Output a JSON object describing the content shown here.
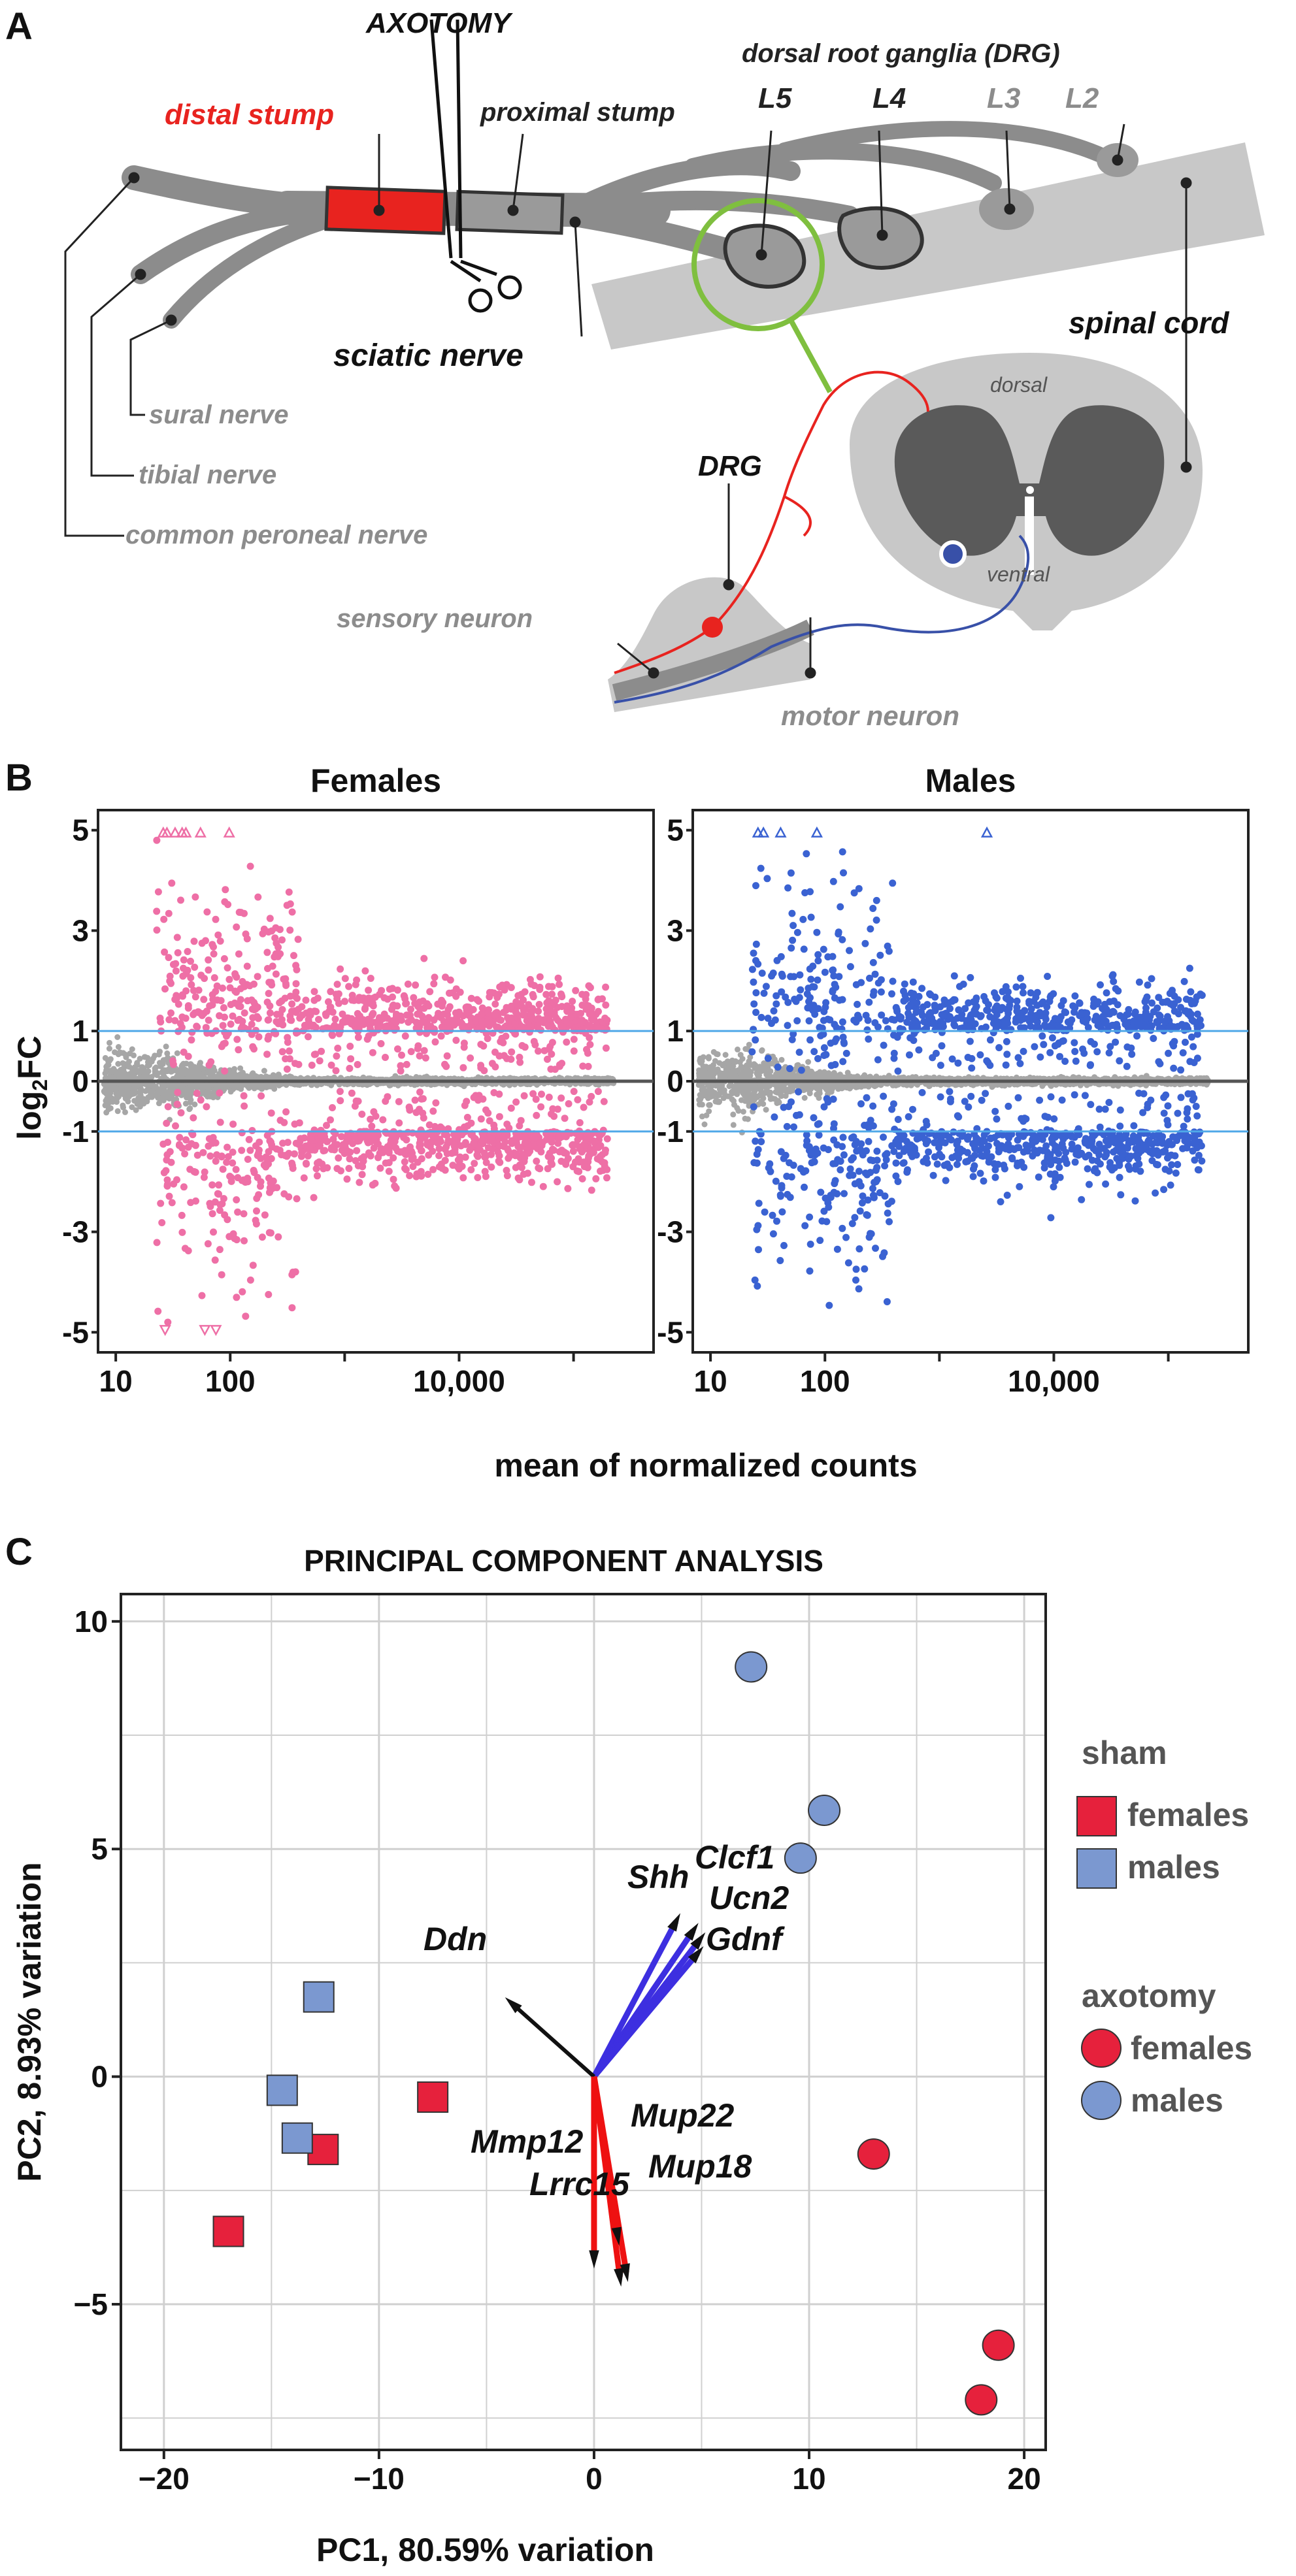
{
  "panel_a": {
    "letter": "A",
    "labels": {
      "axotomy": "AXOTOMY",
      "distal_stump": "distal stump",
      "proximal_stump": "proximal stump",
      "drg_title": "dorsal root ganglia (DRG)",
      "l5": "L5",
      "l4": "L4",
      "l3": "L3",
      "l2": "L2",
      "sciatic_nerve": "sciatic nerve",
      "spinal_cord": "spinal cord",
      "dorsal": "dorsal",
      "ventral": "ventral",
      "sural_nerve": "sural nerve",
      "tibial_nerve": "tibial nerve",
      "common_peroneal_nerve": "common peroneal nerve",
      "drg": "DRG",
      "sensory_neuron": "sensory neuron",
      "motor_neuron": "motor neuron"
    },
    "colors": {
      "nerve": "#8c8c8c",
      "distal": "#e8231f",
      "sensory": "#e8231f",
      "motor": "#3850a8",
      "lens": "#7fbf3f"
    }
  },
  "panel_b": {
    "letter": "B",
    "xlabel": "mean of normalized counts",
    "ylabel_main": "log",
    "ylabel_sub": "2",
    "ylabel_tail": "FC"
  },
  "panel_c": {
    "letter": "C"
  },
  "chart_data": [
    {
      "type": "scatter",
      "subtype": "MA-plot",
      "title": "Females",
      "color": "#ee6fa6",
      "nonsig_color": "#a6a6a6",
      "xscale": "log10",
      "xlim": [
        7,
        500000
      ],
      "ylim": [
        -5.4,
        5.4
      ],
      "x_ticks": [
        10,
        100,
        10000
      ],
      "x_tick_labels": [
        "10",
        "100",
        "10,000"
      ],
      "y_ticks": [
        5,
        3,
        1,
        0,
        -1,
        -3,
        -5
      ],
      "y_tick_labels": [
        "5",
        "3",
        "1",
        "0",
        "-1",
        "-3",
        "-5"
      ],
      "threshold_lines": [
        1,
        -1
      ],
      "threshold_color": "#4fa8e8",
      "outliers_top_x": [
        26,
        28,
        33,
        38,
        41,
        55,
        98
      ],
      "outliers_bottom_x": [
        27,
        60,
        75
      ]
    },
    {
      "type": "scatter",
      "subtype": "MA-plot",
      "title": "Males",
      "color": "#3a62d2",
      "nonsig_color": "#a6a6a6",
      "xscale": "log10",
      "xlim": [
        7,
        500000
      ],
      "ylim": [
        -5.4,
        5.4
      ],
      "x_ticks": [
        10,
        100,
        10000
      ],
      "x_tick_labels": [
        "10",
        "100",
        "10,000"
      ],
      "y_ticks": [
        5,
        3,
        1,
        0,
        -1,
        -3,
        -5
      ],
      "y_tick_labels": [
        "5",
        "3",
        "1",
        "0",
        "-1",
        "-3",
        "-5"
      ],
      "threshold_lines": [
        1,
        -1
      ],
      "threshold_color": "#4fa8e8",
      "outliers_top_x": [
        26,
        29,
        41,
        85,
        2600
      ]
    },
    {
      "type": "scatter",
      "subtype": "PCA biplot",
      "title": "PRINCIPAL COMPONENT ANALYSIS",
      "xlabel": "PC1, 80.59% variation",
      "ylabel": "PC2, 8.93% variation",
      "xlim": [
        -22,
        21
      ],
      "ylim": [
        -8.2,
        10.6
      ],
      "x_ticks": [
        -20,
        -10,
        0,
        10,
        20
      ],
      "x_tick_labels": [
        "−20",
        "−10",
        "0",
        "10",
        "20"
      ],
      "y_ticks": [
        10,
        5,
        0,
        -5
      ],
      "y_tick_labels": [
        "10",
        "5",
        "0",
        "−5"
      ],
      "groups": [
        {
          "name": "sham females",
          "marker": "square",
          "color": "#e6213c",
          "points": [
            [
              -17.0,
              -3.4
            ],
            [
              -12.6,
              -1.6
            ],
            [
              -7.5,
              -0.45
            ]
          ]
        },
        {
          "name": "sham males",
          "marker": "square",
          "color": "#7b98d0",
          "points": [
            [
              -12.8,
              1.75
            ],
            [
              -14.5,
              -0.3
            ],
            [
              -13.8,
              -1.35
            ]
          ]
        },
        {
          "name": "axotomy females",
          "marker": "circle",
          "color": "#e6213c",
          "points": [
            [
              13.0,
              -1.7
            ],
            [
              18.8,
              -5.9
            ],
            [
              18.0,
              -7.1
            ]
          ]
        },
        {
          "name": "axotomy males",
          "marker": "circle",
          "color": "#7b98d0",
          "points": [
            [
              7.3,
              9.0
            ],
            [
              10.7,
              5.85
            ],
            [
              9.6,
              4.8
            ]
          ]
        }
      ],
      "loadings": [
        {
          "gene": "Shh",
          "x": 3.8,
          "y": 3.4,
          "color": "#3d2fe0"
        },
        {
          "gene": "Clcf1",
          "x": 4.6,
          "y": 3.2,
          "color": "#3d2fe0"
        },
        {
          "gene": "Ucn2",
          "x": 4.9,
          "y": 3.0,
          "color": "#3d2fe0"
        },
        {
          "gene": "Gdnf",
          "x": 4.8,
          "y": 2.7,
          "color": "#3d2fe0"
        },
        {
          "gene": "Ddn",
          "x": -3.8,
          "y": 1.6,
          "color": "#111111"
        },
        {
          "gene": "Mmp12",
          "x": 0.0,
          "y": -4.0,
          "color": "#ee1111"
        },
        {
          "gene": "Lrrc15",
          "x": 1.2,
          "y": -4.4,
          "color": "#ee1111"
        },
        {
          "gene": "Mup18",
          "x": 1.5,
          "y": -4.3,
          "color": "#ee1111"
        },
        {
          "gene": "Mup22",
          "x": 1.1,
          "y": -3.5,
          "color": "#ee1111"
        }
      ],
      "legend": {
        "position": "right",
        "sham_heading": "sham",
        "axotomy_heading": "axotomy",
        "females": "females",
        "males": "males"
      }
    }
  ]
}
